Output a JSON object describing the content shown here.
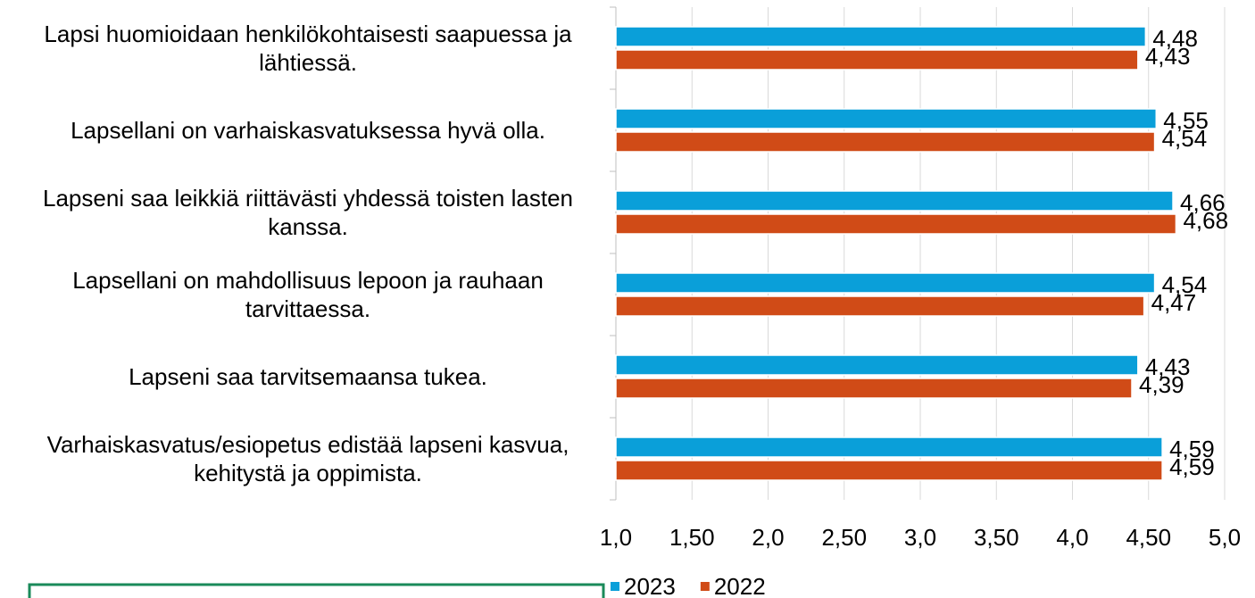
{
  "chart_data": {
    "type": "bar",
    "orientation": "horizontal",
    "categories": [
      "Lapsi huomioidaan henkilökohtaisesti saapuessa ja lähtiessä.",
      "Lapsellani on varhaiskasvatuksessa hyvä olla.",
      "Lapseni saa leikkiä riittävästi yhdessä toisten lasten kanssa.",
      "Lapsellani on mahdollisuus lepoon ja rauhaan tarvittaessa.",
      "Lapseni saa tarvitsemaansa tukea.",
      "Varhaiskasvatus/esiopetus edistää lapseni kasvua, kehitystä ja oppimista."
    ],
    "series": [
      {
        "name": "2023",
        "color": "#0a9fd9",
        "values": [
          4.48,
          4.55,
          4.66,
          4.54,
          4.43,
          4.59
        ],
        "value_labels": [
          "4,48",
          "4,55",
          "4,66",
          "4,54",
          "4,43",
          "4,59"
        ]
      },
      {
        "name": "2022",
        "color": "#d04b17",
        "values": [
          4.43,
          4.54,
          4.68,
          4.47,
          4.39,
          4.59
        ],
        "value_labels": [
          "4,43",
          "4,54",
          "4,68",
          "4,47",
          "4,39",
          "4,59"
        ]
      }
    ],
    "xlim": [
      1,
      5
    ],
    "xticks": [
      {
        "value": 1,
        "label": "1,0"
      },
      {
        "value": 1.5,
        "label": "1,50"
      },
      {
        "value": 2,
        "label": "2,0"
      },
      {
        "value": 2.5,
        "label": "2,50"
      },
      {
        "value": 3,
        "label": "3,0"
      },
      {
        "value": 3.5,
        "label": "3,50"
      },
      {
        "value": 4,
        "label": "4,0"
      },
      {
        "value": 4.5,
        "label": "4,50"
      },
      {
        "value": 5,
        "label": "5,0"
      }
    ],
    "grid": true,
    "legend": "bottom"
  }
}
